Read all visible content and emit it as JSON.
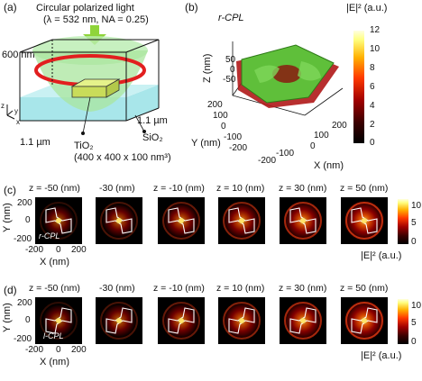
{
  "panel_a": {
    "letter": "(a)",
    "light_title": "Circular polarized light",
    "light_params": "(λ = 532 nm, NA = 0.25)",
    "height_label": "600 nm",
    "depth_right": "1.1 µm",
    "width_bottom": "1.1 µm",
    "substrate": "SiO₂",
    "particle": "TiO₂",
    "particle_dims": "(400 x 400 x 100 nm³)",
    "axis_z": "z",
    "axis_x": "x",
    "axis_y": "y"
  },
  "panel_b": {
    "letter": "(b)",
    "pol": "r-CPL",
    "zlabel": "Z (nm)",
    "ylabel": "Y (nm)",
    "xlabel": "X (nm)",
    "z_ticks": [
      "50",
      "0",
      "-50"
    ],
    "y_ticks": [
      "200",
      "100",
      "0",
      "-100",
      "-200"
    ],
    "x_ticks": [
      "-200",
      "-100",
      "0",
      "100",
      "200"
    ],
    "cbar_label": "|E|² (a.u.)",
    "cbar_ticks": [
      "12",
      "10",
      "8",
      "6",
      "4",
      "2",
      "0"
    ]
  },
  "panel_c": {
    "letter": "(c)",
    "z_headers": [
      "z = -50 (nm)",
      "-30 (nm)",
      "z = -10 (nm)",
      "z = 10 (nm)",
      "z = 30 (nm)",
      "z = 50 (nm)"
    ],
    "pol": "r-CPL",
    "ylabel": "Y (nm)",
    "xlabel": "X (nm)",
    "y_ticks": [
      "200",
      "0",
      "-200"
    ],
    "x_ticks": [
      "-200",
      "0",
      "200"
    ],
    "cbar_label": "|E|² (a.u.)",
    "cbar_ticks": [
      "10",
      "5",
      "0"
    ]
  },
  "panel_d": {
    "letter": "(d)",
    "z_headers": [
      "z = -50 (nm)",
      "-30 (nm)",
      "z = -10 (nm)",
      "z = 10 (nm)",
      "z = 30 (nm)",
      "z = 50 (nm)"
    ],
    "pol": "l-CPL",
    "ylabel": "Y (nm)",
    "xlabel": "X (nm)",
    "y_ticks": [
      "200",
      "0",
      "-200"
    ],
    "x_ticks": [
      "-200",
      "0",
      "200"
    ],
    "cbar_label": "|E|² (a.u.)",
    "cbar_ticks": [
      "10",
      "5",
      "0"
    ]
  }
}
